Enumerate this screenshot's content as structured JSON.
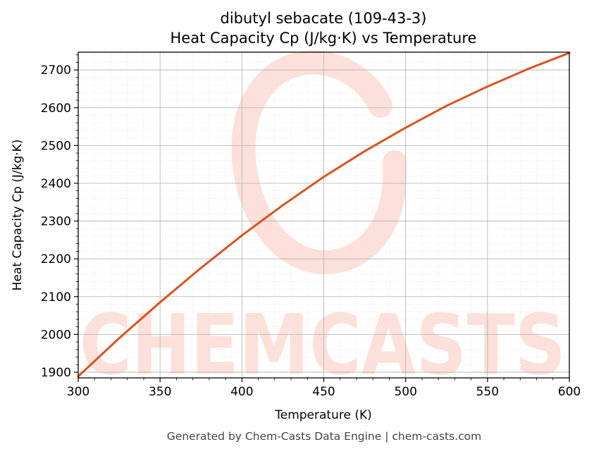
{
  "chart_data": {
    "type": "line",
    "title_line1": "dibutyl sebacate (109-43-3)",
    "title_line2": "Heat Capacity Cp (J/kg·K) vs Temperature",
    "xlabel": "Temperature (K)",
    "ylabel": "Heat Capacity Cp (J/kg·K)",
    "xlim": [
      300,
      600
    ],
    "ylim": [
      1885,
      2747
    ],
    "xticks": [
      300,
      350,
      400,
      450,
      500,
      550,
      600
    ],
    "yticks": [
      1900,
      2000,
      2100,
      2200,
      2300,
      2400,
      2500,
      2600,
      2700
    ],
    "grid": true,
    "series": [
      {
        "color": "#d9541e",
        "x": [
          300,
          325,
          350,
          375,
          400,
          425,
          450,
          475,
          500,
          525,
          550,
          575,
          600
        ],
        "y": [
          1889,
          1990,
          2085,
          2176,
          2262,
          2342,
          2417,
          2485,
          2547,
          2605,
          2656,
          2703,
          2745
        ]
      }
    ]
  },
  "watermark": {
    "text": "CHEMCASTS",
    "color": "#fde0da"
  },
  "footer": "Generated by Chem-Casts Data Engine | chem-casts.com"
}
